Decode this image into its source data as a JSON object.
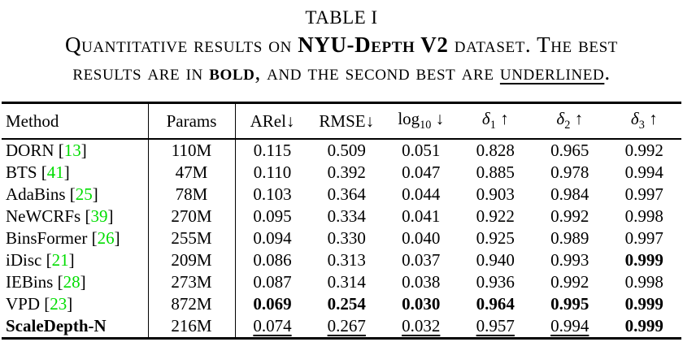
{
  "table_label": "TABLE I",
  "caption": {
    "line1_pre": "Quantitative results on ",
    "line1_dataset": "NYU-Depth V2",
    "line1_post": " dataset. The best",
    "line2_pre": "results are in ",
    "line2_bold": "bold",
    "line2_mid": ", and the second best are ",
    "line2_underlined": "underlined",
    "line2_end": "."
  },
  "colors": {
    "citation_green": "#00dd00",
    "text": "#000000"
  },
  "table": {
    "headers": [
      {
        "key": "method",
        "base": "Method",
        "align": "left"
      },
      {
        "key": "params",
        "base": "Params",
        "align": "center"
      },
      {
        "key": "arel",
        "base": "ARel",
        "arrow": "↓",
        "space": false
      },
      {
        "key": "rmse",
        "base": "RMSE",
        "arrow": "↓",
        "space": false
      },
      {
        "key": "log10",
        "base": "log",
        "sub": "10",
        "arrow": "↓",
        "space": true
      },
      {
        "key": "delta1",
        "base": "δ",
        "sub": "1",
        "italic": true,
        "arrow": "↑",
        "space": true
      },
      {
        "key": "delta2",
        "base": "δ",
        "sub": "2",
        "italic": true,
        "arrow": "↑",
        "space": true
      },
      {
        "key": "delta3",
        "base": "δ",
        "sub": "3",
        "italic": true,
        "arrow": "↑",
        "space": true
      }
    ],
    "rows": [
      {
        "method": "DORN",
        "cite": "13",
        "params": "110M",
        "values": [
          [
            "0.115",
            "n"
          ],
          [
            "0.509",
            "n"
          ],
          [
            "0.051",
            "n"
          ],
          [
            "0.828",
            "n"
          ],
          [
            "0.965",
            "n"
          ],
          [
            "0.992",
            "n"
          ]
        ]
      },
      {
        "method": "BTS",
        "cite": "41",
        "params": "47M",
        "values": [
          [
            "0.110",
            "n"
          ],
          [
            "0.392",
            "n"
          ],
          [
            "0.047",
            "n"
          ],
          [
            "0.885",
            "n"
          ],
          [
            "0.978",
            "n"
          ],
          [
            "0.994",
            "n"
          ]
        ]
      },
      {
        "method": "AdaBins",
        "cite": "25",
        "params": "78M",
        "values": [
          [
            "0.103",
            "n"
          ],
          [
            "0.364",
            "n"
          ],
          [
            "0.044",
            "n"
          ],
          [
            "0.903",
            "n"
          ],
          [
            "0.984",
            "n"
          ],
          [
            "0.997",
            "n"
          ]
        ]
      },
      {
        "method": "NeWCRFs",
        "cite": "39",
        "params": "270M",
        "values": [
          [
            "0.095",
            "n"
          ],
          [
            "0.334",
            "n"
          ],
          [
            "0.041",
            "n"
          ],
          [
            "0.922",
            "n"
          ],
          [
            "0.992",
            "n"
          ],
          [
            "0.998",
            "n"
          ]
        ]
      },
      {
        "method": "BinsFormer",
        "cite": "26",
        "params": "255M",
        "values": [
          [
            "0.094",
            "n"
          ],
          [
            "0.330",
            "n"
          ],
          [
            "0.040",
            "n"
          ],
          [
            "0.925",
            "n"
          ],
          [
            "0.989",
            "n"
          ],
          [
            "0.997",
            "n"
          ]
        ]
      },
      {
        "method": "iDisc",
        "cite": "21",
        "params": "209M",
        "values": [
          [
            "0.086",
            "n"
          ],
          [
            "0.313",
            "n"
          ],
          [
            "0.037",
            "n"
          ],
          [
            "0.940",
            "n"
          ],
          [
            "0.993",
            "n"
          ],
          [
            "0.999",
            "b"
          ]
        ]
      },
      {
        "method": "IEBins",
        "cite": "28",
        "params": "273M",
        "values": [
          [
            "0.087",
            "n"
          ],
          [
            "0.314",
            "n"
          ],
          [
            "0.038",
            "n"
          ],
          [
            "0.936",
            "n"
          ],
          [
            "0.992",
            "n"
          ],
          [
            "0.998",
            "n"
          ]
        ]
      },
      {
        "method": "VPD",
        "cite": "23",
        "params": "872M",
        "values": [
          [
            "0.069",
            "b"
          ],
          [
            "0.254",
            "b"
          ],
          [
            "0.030",
            "b"
          ],
          [
            "0.964",
            "b"
          ],
          [
            "0.995",
            "b"
          ],
          [
            "0.999",
            "b"
          ]
        ]
      },
      {
        "method": "ScaleDepth-N",
        "cite": null,
        "method_bold": true,
        "params": "216M",
        "values": [
          [
            "0.074",
            "u"
          ],
          [
            "0.267",
            "u"
          ],
          [
            "0.032",
            "u"
          ],
          [
            "0.957",
            "u"
          ],
          [
            "0.994",
            "u"
          ],
          [
            "0.999",
            "b"
          ]
        ]
      }
    ]
  }
}
